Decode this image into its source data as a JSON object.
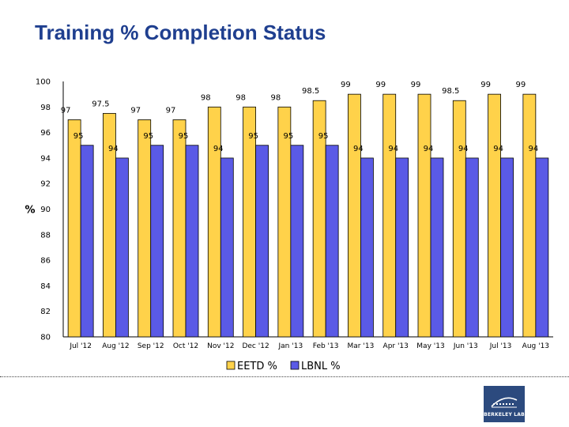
{
  "title": "Training % Completion Status",
  "logo_text": "BERKELEY LAB",
  "colors": {
    "eetd": "#FFD24A",
    "lbnl": "#5A5AE6",
    "title": "#1F3F8F"
  },
  "chart_data": {
    "type": "bar",
    "title": "Training % Completion Status",
    "ylabel": "%",
    "xlabel": "",
    "ylim": [
      80,
      100
    ],
    "yticks": [
      80,
      82,
      84,
      86,
      88,
      90,
      92,
      94,
      96,
      98,
      100
    ],
    "categories": [
      "Jul '12",
      "Aug '12",
      "Sep '12",
      "Oct '12",
      "Nov '12",
      "Dec '12",
      "Jan '13",
      "Feb '13",
      "Mar '13",
      "Apr '13",
      "May '13",
      "Jun '13",
      "Jul '13",
      "Aug '13"
    ],
    "series": [
      {
        "name": "EETD %",
        "values": [
          97,
          97.5,
          97,
          97,
          98,
          98,
          98,
          98.5,
          99,
          99,
          99,
          98.5,
          99,
          99
        ]
      },
      {
        "name": "LBNL %",
        "values": [
          95,
          94,
          95,
          95,
          94,
          95,
          95,
          95,
          94,
          94,
          94,
          94,
          94,
          94
        ]
      }
    ],
    "legend": "bottom-center",
    "grid": false
  }
}
